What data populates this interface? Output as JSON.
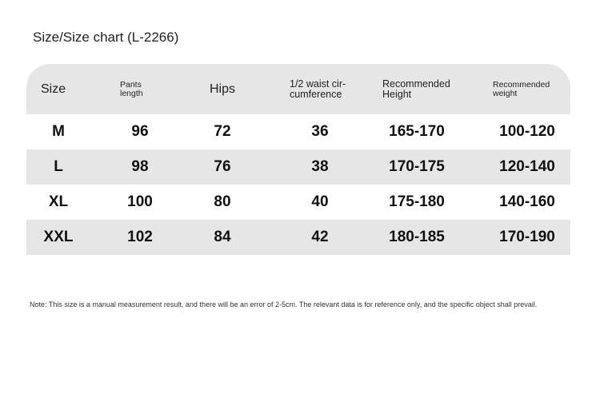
{
  "title": "Size/Size chart (L-2266)",
  "headers": [
    "Size",
    "Pants length",
    "Hips",
    "1/2 waist cir-cumference",
    "Recommended Height",
    "Recommended weight"
  ],
  "header_lines": {
    "pants": [
      "Pants",
      "length"
    ],
    "waist": [
      "1/2 waist cir-",
      "cumference"
    ],
    "height": [
      "Recommended",
      "Height"
    ],
    "weight": [
      "Recommended",
      "weight"
    ]
  },
  "rows": [
    {
      "size": "M",
      "pants": "96",
      "hips": "72",
      "waist": "36",
      "height": "165-170",
      "weight": "100-120"
    },
    {
      "size": "L",
      "pants": "98",
      "hips": "76",
      "waist": "38",
      "height": "170-175",
      "weight": "120-140"
    },
    {
      "size": "XL",
      "pants": "100",
      "hips": "80",
      "waist": "40",
      "height": "175-180",
      "weight": "140-160"
    },
    {
      "size": "XXL",
      "pants": "102",
      "hips": "84",
      "waist": "42",
      "height": "180-185",
      "weight": "170-190"
    }
  ],
  "note": "Note: This size is a manual measurement result, and there will be an error of 2-5cm. The relevant data is for reference only, and the specific object shall prevail.",
  "colors": {
    "header_bg": "#e6e6e6",
    "alt_row_bg": "#e6e6e6"
  }
}
